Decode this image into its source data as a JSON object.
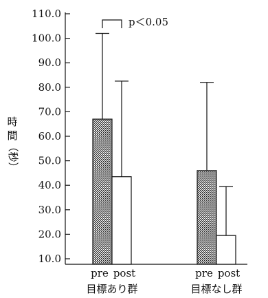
{
  "chart_data": {
    "type": "bar",
    "ylabel": [
      "時",
      "間",
      "（秒）"
    ],
    "ylim": [
      10,
      110
    ],
    "yticks": [
      "110.0",
      "100.0",
      "90.0",
      "80.0",
      "70.0",
      "60.0",
      "50.0",
      "40.0",
      "30.0",
      "20.0",
      "10.0"
    ],
    "ytick_values": [
      110,
      100,
      90,
      80,
      70,
      60,
      50,
      40,
      30,
      20,
      10
    ],
    "groups": [
      {
        "label": "目標あり群",
        "bars": [
          {
            "category": "pre",
            "value": 67.0,
            "error_upper": 102.0,
            "pattern": "dotted"
          },
          {
            "category": "post",
            "value": 43.5,
            "error_upper": 82.5,
            "pattern": "white"
          }
        ]
      },
      {
        "label": "目標なし群",
        "bars": [
          {
            "category": "pre",
            "value": 46.0,
            "error_upper": 82.0,
            "pattern": "dotted"
          },
          {
            "category": "post",
            "value": 19.5,
            "error_upper": 39.5,
            "pattern": "white"
          }
        ]
      }
    ],
    "annotation": "p＜0.05",
    "grid": false,
    "legend": "none"
  }
}
